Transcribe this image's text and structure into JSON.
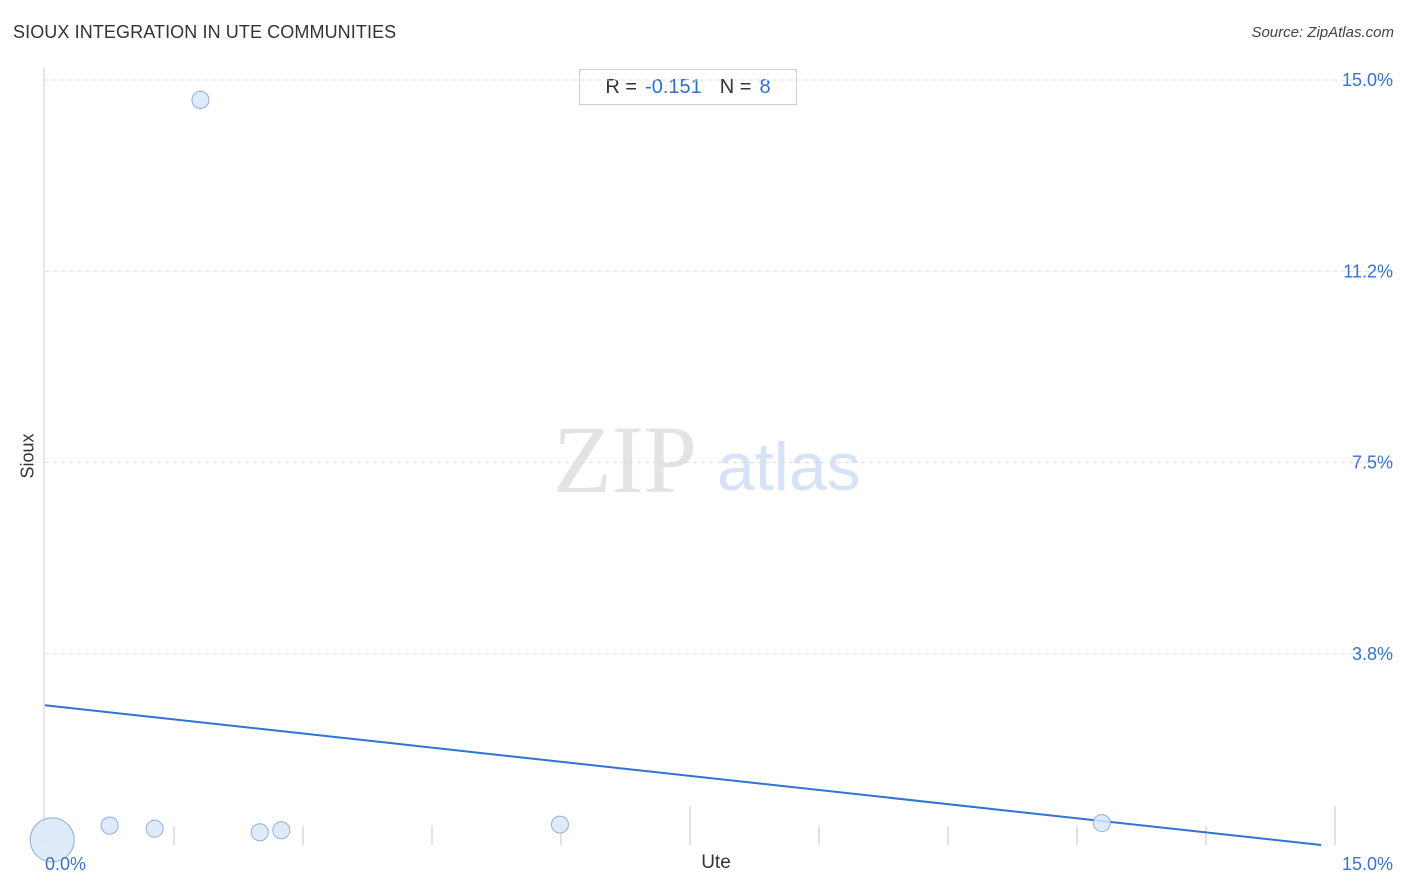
{
  "header": {
    "title": "SIOUX INTEGRATION IN UTE COMMUNITIES",
    "source": "Source: ZipAtlas.com"
  },
  "stats": {
    "r_label": "R =",
    "r_value": "-0.151",
    "n_label": "N =",
    "n_value": "8"
  },
  "watermark": {
    "zip": "ZIP",
    "atlas": "atlas"
  },
  "colors": {
    "accent": "#2e6fce",
    "point_fill": "#dbe7f8",
    "point_stroke": "#8fb0de",
    "grid": "#dcdcdc",
    "trend": "#2e73d6"
  },
  "chart_data": {
    "type": "scatter",
    "title": "SIOUX INTEGRATION IN UTE COMMUNITIES",
    "xlabel": "Ute",
    "ylabel": "Sioux",
    "xlim": [
      0,
      15
    ],
    "ylim": [
      0,
      15
    ],
    "x_tick_labels": [
      {
        "value": 0,
        "label": "0.0%"
      },
      {
        "value": 15,
        "label": "15.0%"
      }
    ],
    "y_tick_labels": [
      {
        "value": 3.75,
        "label": "3.8%"
      },
      {
        "value": 7.5,
        "label": "7.5%"
      },
      {
        "value": 11.25,
        "label": "11.2%"
      },
      {
        "value": 15,
        "label": "15.0%"
      }
    ],
    "grid": "horizontal dashed",
    "points": [
      {
        "x": 0.08,
        "y": 0.1,
        "size": "large"
      },
      {
        "x": 0.72,
        "y": 0.38,
        "size": "normal"
      },
      {
        "x": 1.22,
        "y": 0.32,
        "size": "normal"
      },
      {
        "x": 1.73,
        "y": 14.61,
        "size": "normal"
      },
      {
        "x": 2.39,
        "y": 0.25,
        "size": "normal"
      },
      {
        "x": 2.63,
        "y": 0.29,
        "size": "normal"
      },
      {
        "x": 5.73,
        "y": 0.4,
        "size": "normal"
      },
      {
        "x": 11.76,
        "y": 0.43,
        "size": "normal"
      }
    ],
    "trendline": {
      "x": [
        0,
        14.2
      ],
      "y": [
        2.74,
        0
      ]
    }
  }
}
